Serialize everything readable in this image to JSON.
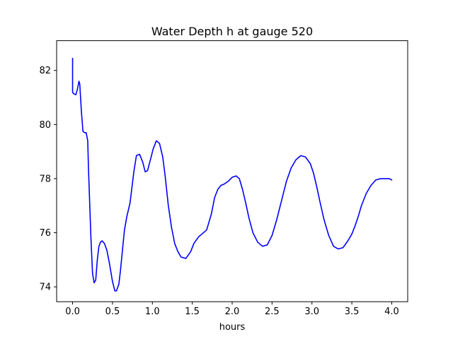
{
  "chart_data": {
    "type": "line",
    "title": "Water Depth h at gauge 520",
    "xlabel": "hours",
    "ylabel": "",
    "xlim": [
      -0.2,
      4.2
    ],
    "ylim": [
      73.45,
      83.1
    ],
    "xticks": [
      0.0,
      0.5,
      1.0,
      1.5,
      2.0,
      2.5,
      3.0,
      3.5,
      4.0
    ],
    "xtick_labels": [
      "0.0",
      "0.5",
      "1.0",
      "1.5",
      "2.0",
      "2.5",
      "3.0",
      "3.5",
      "4.0"
    ],
    "yticks": [
      74,
      76,
      78,
      80,
      82
    ],
    "ytick_labels": [
      "74",
      "76",
      "78",
      "80",
      "82"
    ],
    "grid": false,
    "series": [
      {
        "color": "#0000ff",
        "x": [
          0.0,
          0.0,
          0.01,
          0.04,
          0.06,
          0.08,
          0.09,
          0.11,
          0.13,
          0.15,
          0.17,
          0.19,
          0.2,
          0.23,
          0.25,
          0.27,
          0.29,
          0.31,
          0.33,
          0.35,
          0.37,
          0.4,
          0.43,
          0.46,
          0.5,
          0.53,
          0.55,
          0.58,
          0.6,
          0.63,
          0.65,
          0.68,
          0.72,
          0.77,
          0.8,
          0.84,
          0.88,
          0.91,
          0.94,
          0.98,
          1.01,
          1.05,
          1.09,
          1.13,
          1.16,
          1.2,
          1.24,
          1.28,
          1.32,
          1.36,
          1.42,
          1.48,
          1.52,
          1.58,
          1.62,
          1.68,
          1.74,
          1.78,
          1.82,
          1.86,
          1.9,
          1.95,
          2.0,
          2.05,
          2.09,
          2.13,
          2.17,
          2.21,
          2.26,
          2.32,
          2.38,
          2.44,
          2.5,
          2.56,
          2.62,
          2.68,
          2.74,
          2.8,
          2.86,
          2.92,
          2.98,
          3.02,
          3.06,
          3.1,
          3.15,
          3.21,
          3.27,
          3.33,
          3.39,
          3.45,
          3.5,
          3.54,
          3.58,
          3.62,
          3.68,
          3.74,
          3.8,
          3.86,
          3.92,
          3.97,
          4.0
        ],
        "y": [
          82.45,
          81.2,
          81.15,
          81.1,
          81.3,
          81.6,
          81.5,
          80.5,
          79.75,
          79.7,
          79.7,
          79.4,
          78.3,
          75.8,
          74.5,
          74.15,
          74.25,
          75.0,
          75.5,
          75.65,
          75.7,
          75.6,
          75.35,
          74.9,
          74.2,
          73.85,
          73.85,
          74.1,
          74.6,
          75.5,
          76.1,
          76.6,
          77.1,
          78.3,
          78.85,
          78.9,
          78.6,
          78.25,
          78.3,
          78.75,
          79.1,
          79.4,
          79.3,
          78.8,
          78.1,
          77.0,
          76.2,
          75.6,
          75.3,
          75.1,
          75.05,
          75.3,
          75.6,
          75.85,
          75.95,
          76.1,
          76.7,
          77.3,
          77.6,
          77.75,
          77.8,
          77.9,
          78.05,
          78.1,
          78.0,
          77.6,
          77.1,
          76.55,
          76.0,
          75.65,
          75.5,
          75.55,
          75.9,
          76.5,
          77.2,
          77.9,
          78.4,
          78.7,
          78.85,
          78.8,
          78.55,
          78.2,
          77.7,
          77.15,
          76.5,
          75.9,
          75.5,
          75.4,
          75.45,
          75.7,
          75.95,
          76.25,
          76.6,
          77.0,
          77.45,
          77.75,
          77.95,
          78.0,
          78.0,
          78.0,
          77.95
        ]
      }
    ]
  }
}
